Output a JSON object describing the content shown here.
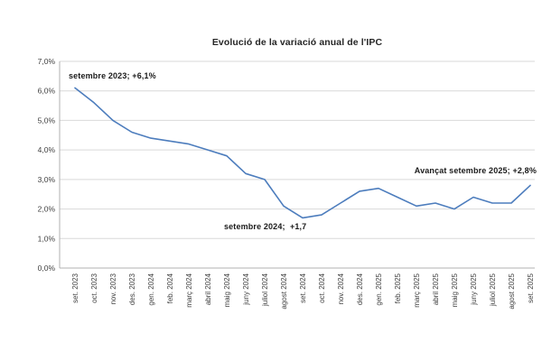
{
  "chart_data": {
    "type": "line",
    "title": "Evolució de la variació anual de l'IPC",
    "x_labels": [
      "set. 2023",
      "oct. 2023",
      "nov. 2023",
      "des. 2023",
      "gen. 2024",
      "feb. 2024",
      "març 2024",
      "abril 2024",
      "maig 2024",
      "juny 2024",
      "juliol 2024",
      "agost 2024",
      "set. 2024",
      "oct. 2024",
      "nov. 2024",
      "des. 2024",
      "gen. 2025",
      "feb. 2025",
      "març 2025",
      "abril 2025",
      "maig 2025",
      "juny 2025",
      "juliol 2025",
      "agost 2025",
      "set. 2025"
    ],
    "values": [
      6.1,
      5.6,
      5.0,
      4.6,
      4.4,
      4.3,
      4.2,
      4.0,
      3.8,
      3.2,
      3.0,
      2.1,
      1.7,
      1.8,
      2.2,
      2.6,
      2.7,
      2.4,
      2.1,
      2.2,
      2.0,
      2.4,
      2.2,
      2.2,
      2.8
    ],
    "y_tick_labels": [
      "0,0%",
      "1,0%",
      "2,0%",
      "3,0%",
      "4,0%",
      "5,0%",
      "6,0%",
      "7,0%"
    ],
    "ylim": [
      0,
      7
    ],
    "grid": true,
    "legend_position": "none",
    "annotations": [
      {
        "id": "start",
        "text": "setembre 2023; +6,1%"
      },
      {
        "id": "min",
        "text": "setembre 2024;  +1,7"
      },
      {
        "id": "latest",
        "text": "Avançat setembre 2025; +2,8%"
      }
    ],
    "colors": {
      "line": "#4d7dbd",
      "gridline": "#d9d9d9",
      "axis": "#b0b0b0",
      "tick_text": "#404040",
      "annotation_text": "#1a1a1a",
      "title_text": "#262626",
      "background": "#ffffff"
    }
  }
}
